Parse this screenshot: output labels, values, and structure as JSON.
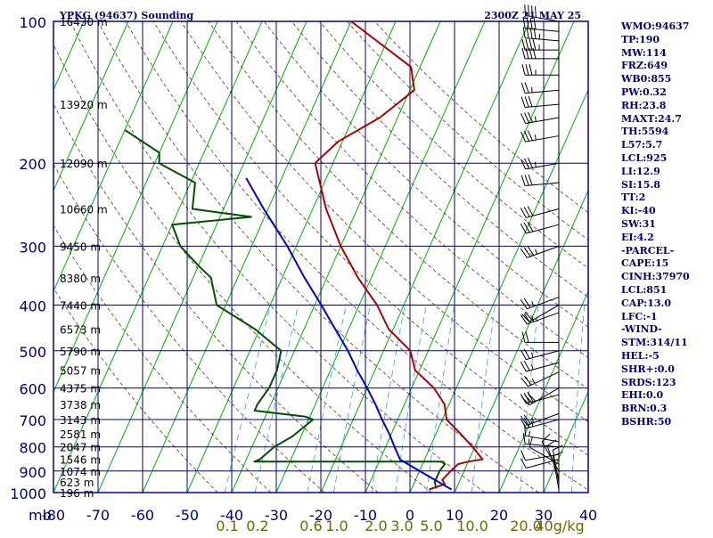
{
  "header": {
    "title": "YPKG (94637) Sounding",
    "timestamp": "2300Z 21 MAY 25"
  },
  "indices": [
    "WMO:94637",
    "TP:190",
    "MW:114",
    "FRZ:649",
    "WB0:855",
    "PW:0.32",
    "RH:23.8",
    "MAXT:24.7",
    "TH:5594",
    "L57:5.7",
    "LCL:925",
    "LI:12.9",
    "SI:15.8",
    "TT:2",
    "KI:-40",
    "SW:31",
    "EI:4.2",
    "-PARCEL-",
    "CAPE:15",
    "CINH:37970",
    "LCL:851",
    "CAP:13.0",
    "LFC:-1",
    "-WIND-",
    "STM:314/11",
    "HEL:-5",
    "SHR+:0.0",
    "SRDS:123",
    "EHI:0.0",
    "BRN:0.3",
    "BSHR:50"
  ],
  "colors": {
    "frame": "#0000a0",
    "grid": "#00008b",
    "isotherm": "#00b000",
    "dry_adiabat": "#5a3a1a",
    "mixing_ratio": "#3399ff",
    "temperature": "#b00000",
    "dewpoint": "#005000",
    "parcel": "#0000cc",
    "wind": "#000000",
    "label_text": "#000080",
    "mixing_label_text": "#6b6b00"
  },
  "chart_data": {
    "type": "skew-t",
    "xlabel": "mb",
    "pressure_axis": {
      "scale": "log",
      "range": [
        1000,
        100
      ],
      "ticks": [
        100,
        200,
        300,
        400,
        500,
        600,
        700,
        800,
        900,
        1000
      ],
      "tick_labels": [
        "100",
        "200",
        "300",
        "400",
        "500",
        "600",
        "700",
        "800",
        "900",
        "1000"
      ]
    },
    "temperature_axis": {
      "units": "C",
      "range": [
        -80,
        40
      ],
      "ticks": [
        -80,
        -70,
        -60,
        -50,
        -40,
        -30,
        -20,
        -10,
        0,
        10,
        20,
        30,
        40
      ],
      "tick_labels": [
        "-80",
        "-70",
        "-60",
        "-50",
        "-40",
        "-30",
        "-20",
        "-10",
        "0",
        "10",
        "20",
        "30",
        "40"
      ]
    },
    "mixing_ratio_labels": [
      "0.1",
      "0.2",
      "0.6",
      "1.0",
      "2.0",
      "3.0",
      "5.0",
      "10.0",
      "20.0",
      "40g/kg"
    ],
    "height_labels": [
      {
        "p": 100,
        "text": "16430 m"
      },
      {
        "p": 150,
        "text": "13920 m"
      },
      {
        "p": 200,
        "text": "12090 m"
      },
      {
        "p": 250,
        "text": "10660 m"
      },
      {
        "p": 300,
        "text": "9450 m"
      },
      {
        "p": 350,
        "text": "8380 m"
      },
      {
        "p": 400,
        "text": "7440 m"
      },
      {
        "p": 450,
        "text": "6573 m"
      },
      {
        "p": 500,
        "text": "5790 m"
      },
      {
        "p": 550,
        "text": "5057 m"
      },
      {
        "p": 600,
        "text": "4375 m"
      },
      {
        "p": 650,
        "text": "3738 m"
      },
      {
        "p": 700,
        "text": "3143 m"
      },
      {
        "p": 750,
        "text": "2581 m"
      },
      {
        "p": 800,
        "text": "2047 m"
      },
      {
        "p": 850,
        "text": "1546 m"
      },
      {
        "p": 900,
        "text": "1074 m"
      },
      {
        "p": 950,
        "text": "623 m"
      },
      {
        "p": 1000,
        "text": "196 m"
      }
    ],
    "series": [
      {
        "key": "temperature",
        "points": [
          {
            "p": 100,
            "t": -60
          },
          {
            "p": 125,
            "t": -42
          },
          {
            "p": 140,
            "t": -39
          },
          {
            "p": 160,
            "t": -44
          },
          {
            "p": 180,
            "t": -51
          },
          {
            "p": 200,
            "t": -54
          },
          {
            "p": 250,
            "t": -47
          },
          {
            "p": 300,
            "t": -40
          },
          {
            "p": 350,
            "t": -33
          },
          {
            "p": 400,
            "t": -26
          },
          {
            "p": 450,
            "t": -21
          },
          {
            "p": 500,
            "t": -14
          },
          {
            "p": 550,
            "t": -11
          },
          {
            "p": 600,
            "t": -5
          },
          {
            "p": 650,
            "t": -1
          },
          {
            "p": 700,
            "t": 1
          },
          {
            "p": 750,
            "t": 5.5
          },
          {
            "p": 800,
            "t": 9.5
          },
          {
            "p": 850,
            "t": 13
          },
          {
            "p": 860,
            "t": 10
          },
          {
            "p": 870,
            "t": 8
          },
          {
            "p": 900,
            "t": 7
          },
          {
            "p": 940,
            "t": 6
          },
          {
            "p": 960,
            "t": 7
          },
          {
            "p": 985,
            "t": 4
          }
        ]
      },
      {
        "key": "dewpoint",
        "points": [
          {
            "p": 170,
            "t": -100
          },
          {
            "p": 190,
            "t": -90
          },
          {
            "p": 200,
            "t": -89
          },
          {
            "p": 220,
            "t": -79
          },
          {
            "p": 250,
            "t": -77
          },
          {
            "p": 260,
            "t": -63
          },
          {
            "p": 270,
            "t": -80
          },
          {
            "p": 300,
            "t": -76
          },
          {
            "p": 330,
            "t": -70
          },
          {
            "p": 350,
            "t": -66
          },
          {
            "p": 400,
            "t": -62
          },
          {
            "p": 450,
            "t": -51
          },
          {
            "p": 500,
            "t": -43
          },
          {
            "p": 550,
            "t": -42
          },
          {
            "p": 600,
            "t": -42
          },
          {
            "p": 650,
            "t": -43
          },
          {
            "p": 670,
            "t": -43
          },
          {
            "p": 690,
            "t": -31
          },
          {
            "p": 700,
            "t": -29
          },
          {
            "p": 760,
            "t": -32
          },
          {
            "p": 800,
            "t": -35
          },
          {
            "p": 850,
            "t": -37
          },
          {
            "p": 860,
            "t": -38
          },
          {
            "p": 860,
            "t": 4
          },
          {
            "p": 870,
            "t": 5
          },
          {
            "p": 900,
            "t": 4.5
          },
          {
            "p": 950,
            "t": 4.5
          },
          {
            "p": 980,
            "t": 5.5
          }
        ]
      },
      {
        "key": "parcel",
        "points": [
          {
            "p": 985,
            "t": 9
          },
          {
            "p": 900,
            "t": 0
          },
          {
            "p": 851,
            "t": -5.5
          },
          {
            "p": 800,
            "t": -8
          },
          {
            "p": 750,
            "t": -10.5
          },
          {
            "p": 700,
            "t": -13.5
          },
          {
            "p": 650,
            "t": -16.5
          },
          {
            "p": 600,
            "t": -20
          },
          {
            "p": 550,
            "t": -24
          },
          {
            "p": 500,
            "t": -28
          },
          {
            "p": 450,
            "t": -33
          },
          {
            "p": 400,
            "t": -38.5
          },
          {
            "p": 350,
            "t": -45
          },
          {
            "p": 300,
            "t": -52
          },
          {
            "p": 250,
            "t": -61
          },
          {
            "p": 215,
            "t": -68
          }
        ]
      }
    ],
    "wind_barbs": [
      {
        "p": 100,
        "dir": 280,
        "spd": 40
      },
      {
        "p": 105,
        "dir": 275,
        "spd": 40
      },
      {
        "p": 110,
        "dir": 275,
        "spd": 45
      },
      {
        "p": 115,
        "dir": 270,
        "spd": 45
      },
      {
        "p": 120,
        "dir": 270,
        "spd": 40
      },
      {
        "p": 130,
        "dir": 270,
        "spd": 35
      },
      {
        "p": 140,
        "dir": 265,
        "spd": 25
      },
      {
        "p": 150,
        "dir": 265,
        "spd": 30
      },
      {
        "p": 160,
        "dir": 260,
        "spd": 35
      },
      {
        "p": 175,
        "dir": 260,
        "spd": 35
      },
      {
        "p": 200,
        "dir": 260,
        "spd": 35
      },
      {
        "p": 220,
        "dir": 265,
        "spd": 30
      },
      {
        "p": 250,
        "dir": 255,
        "spd": 30
      },
      {
        "p": 270,
        "dir": 255,
        "spd": 30
      },
      {
        "p": 300,
        "dir": 250,
        "spd": 35
      },
      {
        "p": 385,
        "dir": 250,
        "spd": 25
      },
      {
        "p": 400,
        "dir": 240,
        "spd": 20
      },
      {
        "p": 415,
        "dir": 250,
        "spd": 25
      },
      {
        "p": 480,
        "dir": 270,
        "spd": 20
      },
      {
        "p": 500,
        "dir": 255,
        "spd": 25
      },
      {
        "p": 530,
        "dir": 255,
        "spd": 25
      },
      {
        "p": 555,
        "dir": 245,
        "spd": 25
      },
      {
        "p": 600,
        "dir": 240,
        "spd": 30
      },
      {
        "p": 620,
        "dir": 255,
        "spd": 30
      },
      {
        "p": 680,
        "dir": 250,
        "spd": 25
      },
      {
        "p": 700,
        "dir": 255,
        "spd": 25
      },
      {
        "p": 780,
        "dir": 280,
        "spd": 15
      },
      {
        "p": 800,
        "dir": 275,
        "spd": 15
      },
      {
        "p": 830,
        "dir": 260,
        "spd": 10
      },
      {
        "p": 850,
        "dir": 255,
        "spd": 10
      },
      {
        "p": 870,
        "dir": 300,
        "spd": 10
      },
      {
        "p": 900,
        "dir": 330,
        "spd": 10
      },
      {
        "p": 930,
        "dir": 340,
        "spd": 10
      },
      {
        "p": 955,
        "dir": 350,
        "spd": 10
      },
      {
        "p": 985,
        "dir": 350,
        "spd": 10
      }
    ]
  }
}
